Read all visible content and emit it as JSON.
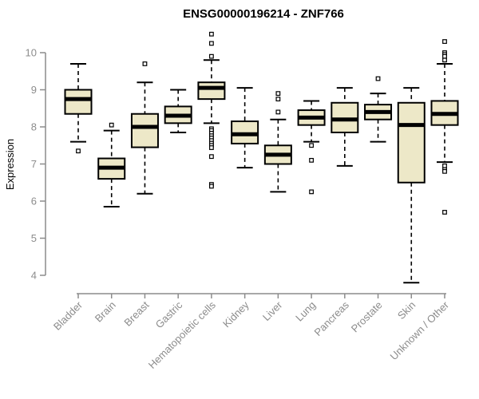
{
  "chart_data": {
    "type": "boxplot",
    "title": "ENSG00000196214 - ZNF766",
    "ylabel": "Expression",
    "xlabel": "",
    "yticks": [
      4,
      5,
      6,
      7,
      8,
      9,
      10
    ],
    "ylim": [
      3.6,
      10.7
    ],
    "grid": false,
    "legend": "none",
    "categories": [
      "Bladder",
      "Brain",
      "Breast",
      "Gastric",
      "Hematopoietic cells",
      "Kidney",
      "Liver",
      "Lung",
      "Pancreas",
      "Prostate",
      "Skin",
      "Unknown / Other"
    ],
    "series": [
      {
        "category": "Bladder",
        "low": 7.6,
        "q1": 8.35,
        "median": 8.75,
        "q3": 9.0,
        "high": 9.7,
        "outliers": [
          7.35
        ]
      },
      {
        "category": "Brain",
        "low": 5.85,
        "q1": 6.6,
        "median": 6.9,
        "q3": 7.15,
        "high": 7.9,
        "outliers": [
          8.05
        ]
      },
      {
        "category": "Breast",
        "low": 6.2,
        "q1": 7.45,
        "median": 8.0,
        "q3": 8.35,
        "high": 9.2,
        "outliers": [
          9.7
        ]
      },
      {
        "category": "Gastric",
        "low": 7.85,
        "q1": 8.1,
        "median": 8.3,
        "q3": 8.55,
        "high": 9.0,
        "outliers": []
      },
      {
        "category": "Hematopoietic cells",
        "low": 8.1,
        "q1": 8.75,
        "median": 9.05,
        "q3": 9.2,
        "high": 9.8,
        "outliers": [
          10.5,
          10.25,
          9.9,
          7.95,
          7.9,
          7.83,
          7.76,
          7.7,
          7.63,
          7.56,
          7.5,
          7.44,
          7.2,
          6.45,
          6.4
        ]
      },
      {
        "category": "Kidney",
        "low": 6.9,
        "q1": 7.55,
        "median": 7.8,
        "q3": 8.15,
        "high": 9.05,
        "outliers": []
      },
      {
        "category": "Liver",
        "low": 6.25,
        "q1": 7.0,
        "median": 7.25,
        "q3": 7.5,
        "high": 8.2,
        "outliers": [
          8.9,
          8.75,
          8.4
        ]
      },
      {
        "category": "Lung",
        "low": 7.6,
        "q1": 8.05,
        "median": 8.25,
        "q3": 8.45,
        "high": 8.7,
        "outliers": [
          7.5,
          7.1,
          6.25
        ]
      },
      {
        "category": "Pancreas",
        "low": 6.95,
        "q1": 7.85,
        "median": 8.2,
        "q3": 8.65,
        "high": 9.05,
        "outliers": []
      },
      {
        "category": "Prostate",
        "low": 7.6,
        "q1": 8.2,
        "median": 8.4,
        "q3": 8.6,
        "high": 8.9,
        "outliers": [
          9.3
        ]
      },
      {
        "category": "Skin",
        "low": 3.8,
        "q1": 6.5,
        "median": 8.05,
        "q3": 8.65,
        "high": 9.05,
        "outliers": []
      },
      {
        "category": "Unknown / Other",
        "low": 7.05,
        "q1": 8.05,
        "median": 8.35,
        "q3": 8.7,
        "high": 9.7,
        "outliers": [
          10.3,
          10.0,
          9.95,
          9.9,
          9.8,
          6.95,
          6.85,
          6.8,
          5.7
        ]
      }
    ],
    "colors": {
      "box_fill": "#EDE8C8",
      "box_stroke": "#000000",
      "median": "#000000",
      "outlier_fill": "#ffffff",
      "axis": "#8C8C8C",
      "title": "#000000",
      "background": "#ffffff"
    }
  }
}
